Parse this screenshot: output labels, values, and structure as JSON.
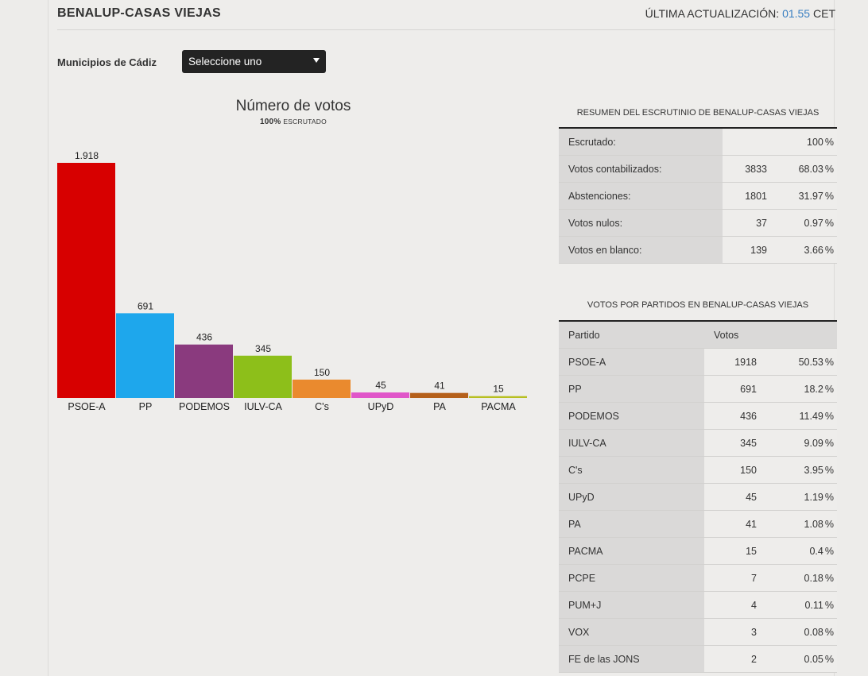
{
  "header": {
    "title": "BENALUP-CASAS VIEJAS",
    "updated_label": "ÚLTIMA ACTUALIZACIÓN:",
    "updated_time": "01.55",
    "updated_tz": "CET"
  },
  "selector": {
    "label": "Municipios de Cádiz",
    "value": "Seleccione uno"
  },
  "colors": {
    "PSOE-A": "#d70000",
    "PP": "#1ea7ec",
    "PODEMOS": "#8a3a7e",
    "IULV-CA": "#8dbf1a",
    "C's": "#ea8a2e",
    "UPyD": "#e056c9",
    "PA": "#b5601a",
    "PACMA": "#b7bf20"
  },
  "chart_data": {
    "type": "bar",
    "title": "Número de votos",
    "subtitle_pct": "100%",
    "subtitle_text": "escrutado",
    "categories": [
      "PSOE-A",
      "PP",
      "PODEMOS",
      "IULV-CA",
      "C's",
      "UPyD",
      "PA",
      "PACMA"
    ],
    "values": [
      1918,
      691,
      436,
      345,
      150,
      45,
      41,
      15
    ],
    "value_labels": [
      "1.918",
      "691",
      "436",
      "345",
      "150",
      "45",
      "41",
      "15"
    ],
    "ylim": [
      0,
      1918
    ],
    "grid": false,
    "legend": "none"
  },
  "summary": {
    "caption": "RESUMEN DEL ESCRUTINIO DE BENALUP-CASAS VIEJAS",
    "rows": [
      {
        "label": "Escrutado:",
        "num": "",
        "pct": "100"
      },
      {
        "label": "Votos contabilizados:",
        "num": "3833",
        "pct": "68.03"
      },
      {
        "label": "Abstenciones:",
        "num": "1801",
        "pct": "31.97"
      },
      {
        "label": "Votos nulos:",
        "num": "37",
        "pct": "0.97"
      },
      {
        "label": "Votos en blanco:",
        "num": "139",
        "pct": "3.66"
      }
    ]
  },
  "parties": {
    "caption": "VOTOS POR PARTIDOS EN BENALUP-CASAS VIEJAS",
    "col_party": "Partido",
    "col_votes": "Votos",
    "rows": [
      {
        "name": "PSOE-A",
        "votes": "1918",
        "pct": "50.53"
      },
      {
        "name": "PP",
        "votes": "691",
        "pct": "18.2"
      },
      {
        "name": "PODEMOS",
        "votes": "436",
        "pct": "11.49"
      },
      {
        "name": "IULV-CA",
        "votes": "345",
        "pct": "9.09"
      },
      {
        "name": "C's",
        "votes": "150",
        "pct": "3.95"
      },
      {
        "name": "UPyD",
        "votes": "45",
        "pct": "1.19"
      },
      {
        "name": "PA",
        "votes": "41",
        "pct": "1.08"
      },
      {
        "name": "PACMA",
        "votes": "15",
        "pct": "0.4"
      },
      {
        "name": "PCPE",
        "votes": "7",
        "pct": "0.18"
      },
      {
        "name": "PUM+J",
        "votes": "4",
        "pct": "0.11"
      },
      {
        "name": "VOX",
        "votes": "3",
        "pct": "0.08"
      },
      {
        "name": "FE de las JONS",
        "votes": "2",
        "pct": "0.05"
      }
    ]
  },
  "pct_symbol": "%"
}
